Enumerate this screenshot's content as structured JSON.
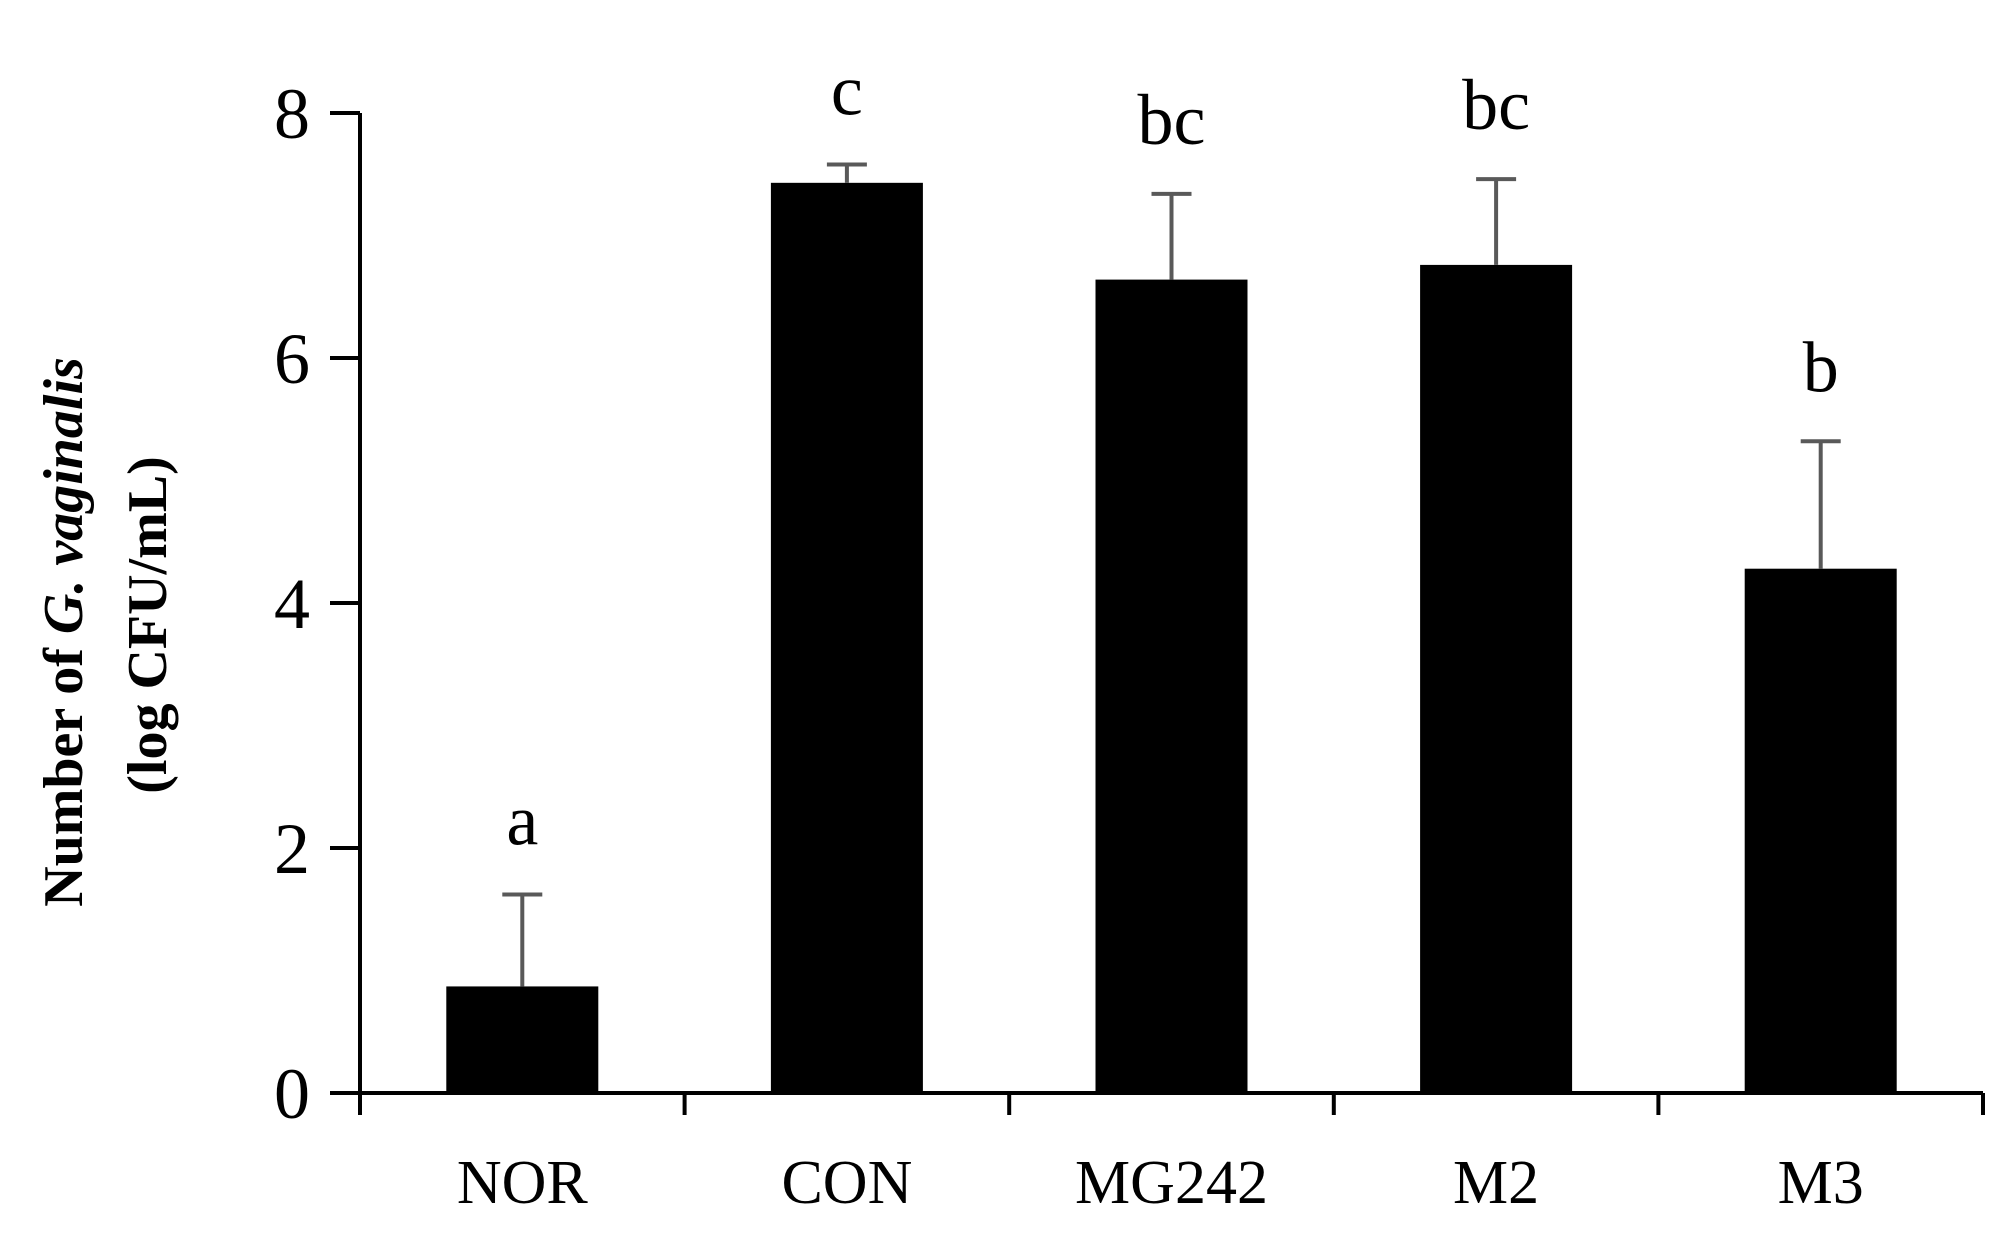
{
  "chart_data": {
    "type": "bar",
    "categories": [
      "NOR",
      "CON",
      "MG242",
      "M2",
      "M3"
    ],
    "values": [
      0.87,
      7.43,
      6.64,
      6.76,
      4.28
    ],
    "errors": [
      0.75,
      0.15,
      0.7,
      0.7,
      1.04
    ],
    "significance_labels": [
      "a",
      "c",
      "bc",
      "bc",
      "b"
    ],
    "ylabel": {
      "line1_prefix": "Number of ",
      "line1_italic": "G. vaginalis",
      "line2": "(log CFU/mL)"
    },
    "xlabel": "",
    "title": "",
    "ylim": [
      0,
      8
    ],
    "yticks": [
      0,
      2,
      4,
      6,
      8
    ],
    "grid": false,
    "legend": "none",
    "bar_color": "#000000",
    "error_bar_color": "#595959",
    "axis_color": "#000000"
  }
}
